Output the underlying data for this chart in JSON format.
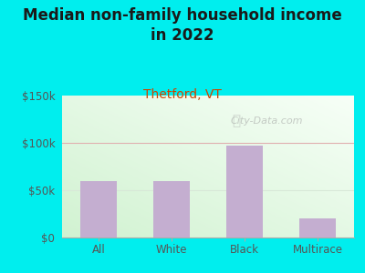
{
  "title": "Median non-family household income\nin 2022",
  "subtitle": "Thetford, VT",
  "categories": [
    "All",
    "White",
    "Black",
    "Multirace"
  ],
  "values": [
    60000,
    60000,
    97000,
    20000
  ],
  "bar_color": "#c4aed0",
  "title_color": "#1a1a1a",
  "subtitle_color": "#cc4400",
  "bg_color": "#00eeee",
  "ylim": [
    0,
    150000
  ],
  "yticks": [
    0,
    50000,
    100000,
    150000
  ],
  "ytick_labels": [
    "$0",
    "$50k",
    "$100k",
    "$150k"
  ],
  "watermark": "City-Data.com",
  "grid_color_100k": "#e0b0b0",
  "grid_color_50k": "#d8e8d8",
  "title_fontsize": 12,
  "subtitle_fontsize": 10,
  "tick_fontsize": 8.5
}
